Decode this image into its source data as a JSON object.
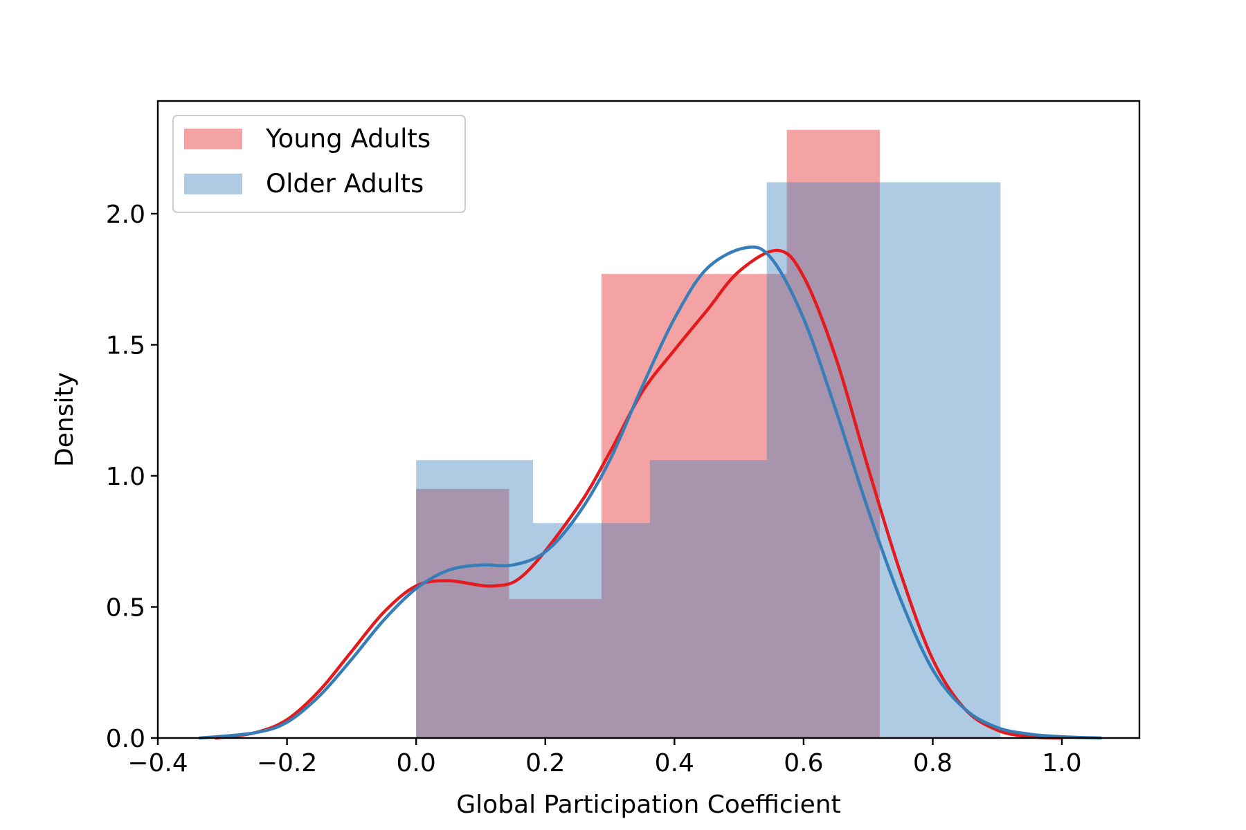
{
  "chart_data": {
    "type": "histogram+kde",
    "xlabel": "Global Participation Coefficient",
    "ylabel": "Density",
    "xlim": [
      -0.4,
      1.12
    ],
    "ylim": [
      0,
      2.43
    ],
    "xticks": [
      -0.4,
      -0.2,
      0.0,
      0.2,
      0.4,
      0.6,
      0.8,
      1.0
    ],
    "xtick_labels": [
      "−0.4",
      "−0.2",
      "0.0",
      "0.2",
      "0.4",
      "0.6",
      "0.8",
      "1.0"
    ],
    "yticks": [
      0.0,
      0.5,
      1.0,
      1.5,
      2.0
    ],
    "ytick_labels": [
      "0.0",
      "0.5",
      "1.0",
      "1.5",
      "2.0"
    ],
    "grid": false,
    "legend_position": "top-left",
    "series": [
      {
        "name": "Young Adults",
        "color": "#e41a1c",
        "bar_color": "#f4a5a6",
        "bins": [
          {
            "x0": 0.0,
            "x1": 0.144,
            "density": 0.95
          },
          {
            "x0": 0.144,
            "x1": 0.287,
            "density": 0.53
          },
          {
            "x0": 0.287,
            "x1": 0.431,
            "density": 1.77
          },
          {
            "x0": 0.431,
            "x1": 0.574,
            "density": 1.77
          },
          {
            "x0": 0.574,
            "x1": 0.718,
            "density": 2.32
          }
        ],
        "kde": [
          {
            "x": -0.31,
            "y": 0.0
          },
          {
            "x": -0.25,
            "y": 0.02
          },
          {
            "x": -0.2,
            "y": 0.07
          },
          {
            "x": -0.15,
            "y": 0.18
          },
          {
            "x": -0.1,
            "y": 0.33
          },
          {
            "x": -0.05,
            "y": 0.48
          },
          {
            "x": 0.0,
            "y": 0.58
          },
          {
            "x": 0.05,
            "y": 0.6
          },
          {
            "x": 0.12,
            "y": 0.58
          },
          {
            "x": 0.17,
            "y": 0.63
          },
          {
            "x": 0.25,
            "y": 0.88
          },
          {
            "x": 0.3,
            "y": 1.09
          },
          {
            "x": 0.35,
            "y": 1.32
          },
          {
            "x": 0.4,
            "y": 1.48
          },
          {
            "x": 0.45,
            "y": 1.63
          },
          {
            "x": 0.5,
            "y": 1.78
          },
          {
            "x": 0.56,
            "y": 1.86
          },
          {
            "x": 0.6,
            "y": 1.76
          },
          {
            "x": 0.65,
            "y": 1.45
          },
          {
            "x": 0.7,
            "y": 1.03
          },
          {
            "x": 0.75,
            "y": 0.63
          },
          {
            "x": 0.8,
            "y": 0.3
          },
          {
            "x": 0.85,
            "y": 0.11
          },
          {
            "x": 0.9,
            "y": 0.03
          },
          {
            "x": 0.95,
            "y": 0.005
          },
          {
            "x": 1.0,
            "y": 0.0
          }
        ]
      },
      {
        "name": "Older Adults",
        "color": "#377eb8",
        "bar_color": "#a8c7e0",
        "bins": [
          {
            "x0": 0.0,
            "x1": 0.181,
            "density": 1.06
          },
          {
            "x0": 0.181,
            "x1": 0.362,
            "density": 0.82
          },
          {
            "x0": 0.362,
            "x1": 0.543,
            "density": 1.06
          },
          {
            "x0": 0.543,
            "x1": 0.724,
            "density": 2.12
          },
          {
            "x0": 0.724,
            "x1": 0.905,
            "density": 2.12
          }
        ],
        "kde": [
          {
            "x": -0.335,
            "y": 0.0
          },
          {
            "x": -0.25,
            "y": 0.02
          },
          {
            "x": -0.2,
            "y": 0.06
          },
          {
            "x": -0.15,
            "y": 0.16
          },
          {
            "x": -0.1,
            "y": 0.3
          },
          {
            "x": -0.05,
            "y": 0.45
          },
          {
            "x": 0.0,
            "y": 0.57
          },
          {
            "x": 0.05,
            "y": 0.64
          },
          {
            "x": 0.1,
            "y": 0.66
          },
          {
            "x": 0.15,
            "y": 0.66
          },
          {
            "x": 0.2,
            "y": 0.71
          },
          {
            "x": 0.25,
            "y": 0.85
          },
          {
            "x": 0.3,
            "y": 1.06
          },
          {
            "x": 0.35,
            "y": 1.34
          },
          {
            "x": 0.4,
            "y": 1.6
          },
          {
            "x": 0.45,
            "y": 1.79
          },
          {
            "x": 0.51,
            "y": 1.87
          },
          {
            "x": 0.55,
            "y": 1.83
          },
          {
            "x": 0.6,
            "y": 1.6
          },
          {
            "x": 0.65,
            "y": 1.25
          },
          {
            "x": 0.7,
            "y": 0.87
          },
          {
            "x": 0.75,
            "y": 0.53
          },
          {
            "x": 0.8,
            "y": 0.26
          },
          {
            "x": 0.85,
            "y": 0.11
          },
          {
            "x": 0.9,
            "y": 0.04
          },
          {
            "x": 0.95,
            "y": 0.015
          },
          {
            "x": 1.0,
            "y": 0.005
          },
          {
            "x": 1.06,
            "y": 0.0
          }
        ]
      }
    ]
  }
}
